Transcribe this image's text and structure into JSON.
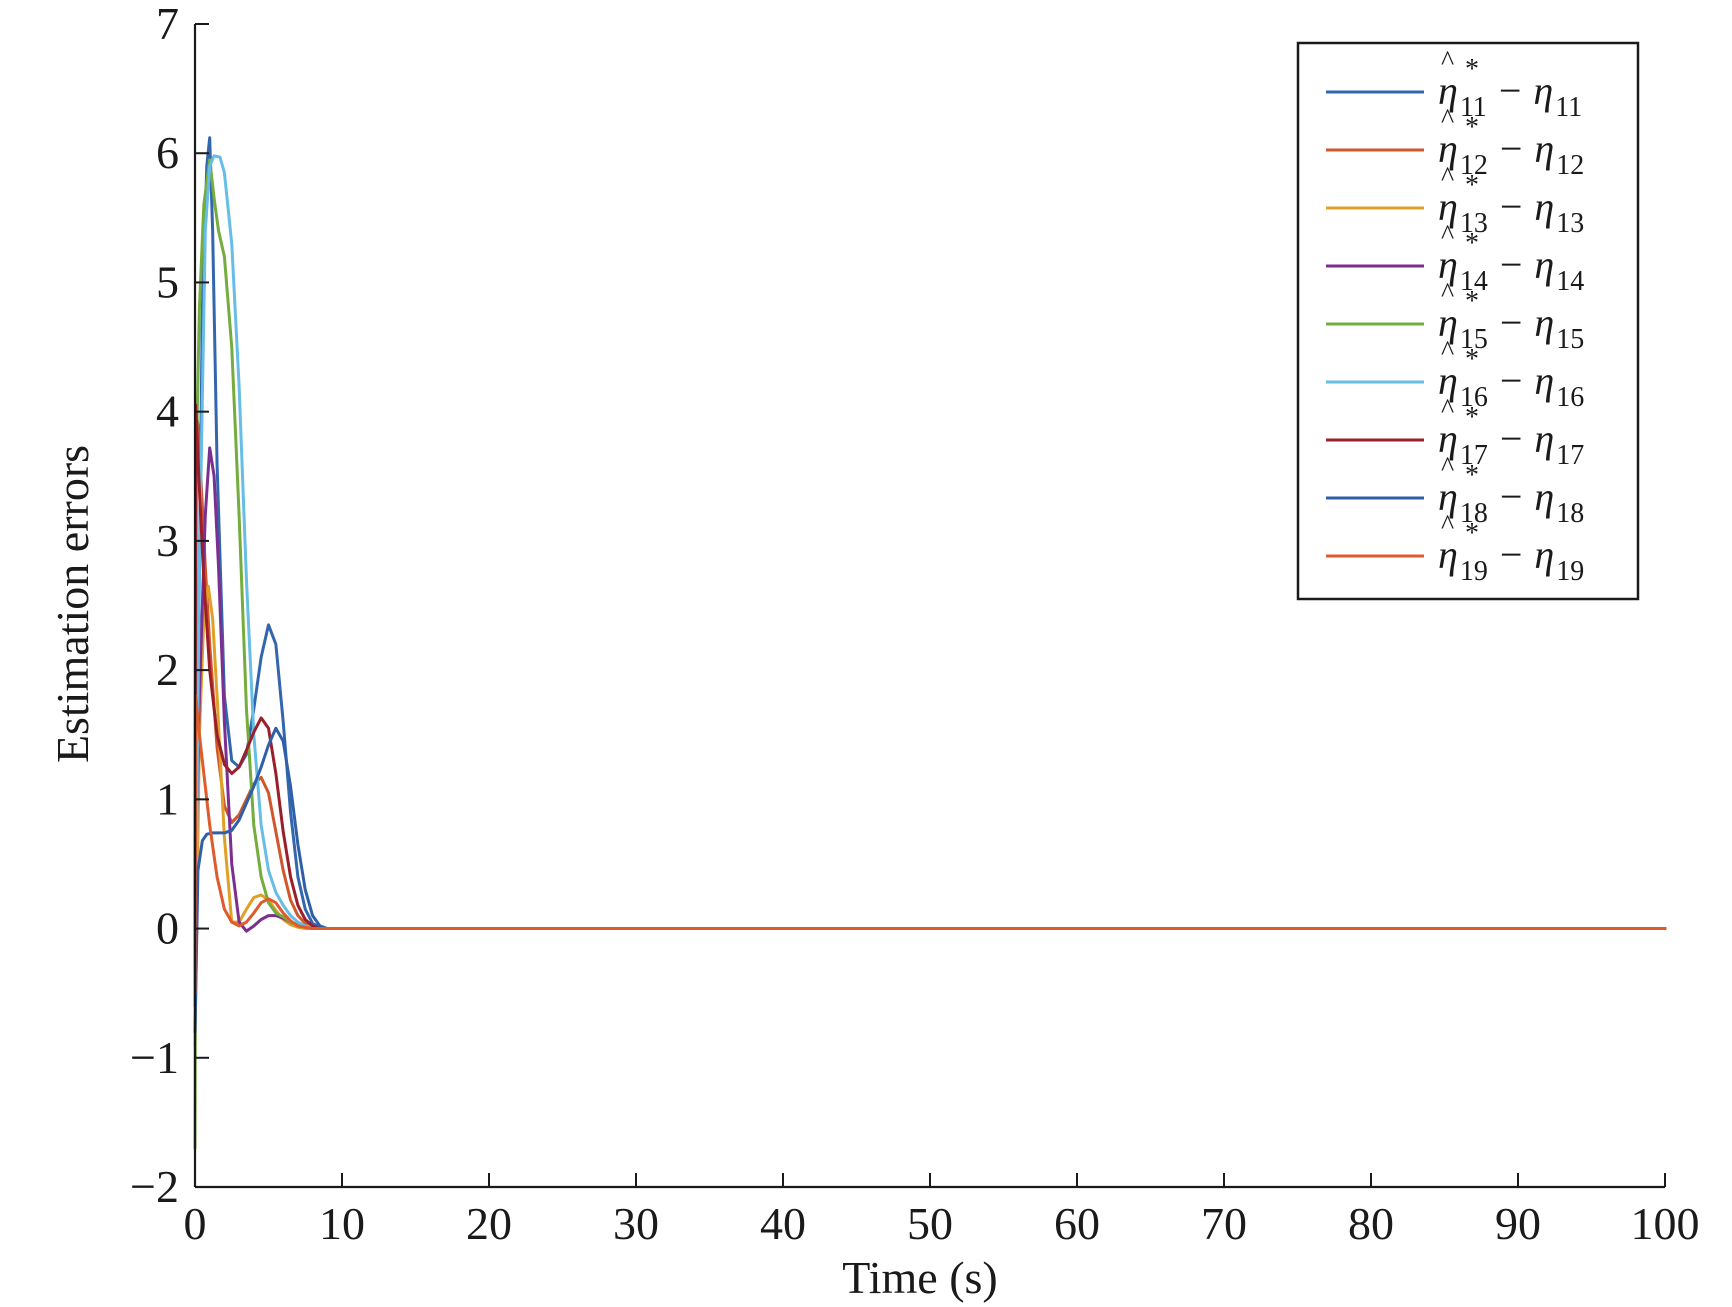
{
  "chart_data": {
    "type": "line",
    "xlabel": "Time (s)",
    "ylabel": "Estimation errors",
    "xlim": [
      0,
      100
    ],
    "ylim": [
      -2,
      7
    ],
    "xticks": [
      0,
      10,
      20,
      30,
      40,
      50,
      60,
      70,
      80,
      90,
      100
    ],
    "yticks": [
      -2,
      -1,
      0,
      1,
      2,
      3,
      4,
      5,
      6,
      7
    ],
    "xtick_labels": [
      "0",
      "10",
      "20",
      "30",
      "40",
      "50",
      "60",
      "70",
      "80",
      "90",
      "100"
    ],
    "ytick_labels": [
      "−2",
      "−1",
      "0",
      "1",
      "2",
      "3",
      "4",
      "5",
      "6",
      "7"
    ],
    "grid": false,
    "legend_position": "top-right",
    "series": [
      {
        "name": "η̂*11 − η11",
        "sub": "11",
        "color": "#3466ae",
        "x": [
          0,
          0.1,
          0.3,
          0.5,
          0.8,
          1.0,
          1.2,
          1.5,
          2.0,
          2.5,
          3.0,
          3.5,
          4.0,
          4.5,
          5.0,
          5.5,
          6.0,
          6.5,
          7.0,
          7.5,
          8.0,
          8.5,
          9.0,
          100
        ],
        "y": [
          -0.6,
          0.5,
          2.8,
          4.8,
          5.9,
          6.12,
          5.4,
          3.6,
          1.8,
          1.3,
          1.25,
          1.35,
          1.7,
          2.1,
          2.35,
          2.2,
          1.6,
          0.9,
          0.4,
          0.15,
          0.04,
          0.01,
          0,
          0
        ]
      },
      {
        "name": "η̂*12 − η12",
        "sub": "12",
        "color": "#d0572b",
        "x": [
          0,
          0.05,
          0.2,
          0.4,
          0.7,
          1.0,
          1.5,
          2.0,
          2.5,
          3.0,
          3.5,
          4.0,
          4.5,
          5.0,
          5.5,
          6.0,
          6.5,
          7.0,
          7.5,
          8.0,
          8.5,
          100
        ],
        "y": [
          -0.3,
          4.0,
          3.9,
          3.5,
          2.8,
          2.2,
          1.4,
          0.95,
          0.82,
          0.88,
          1.0,
          1.12,
          1.17,
          1.05,
          0.75,
          0.45,
          0.22,
          0.1,
          0.04,
          0.01,
          0,
          0
        ]
      },
      {
        "name": "η̂*13 − η13",
        "sub": "13",
        "color": "#e0a028",
        "x": [
          0,
          0.3,
          0.6,
          0.9,
          1.2,
          1.5,
          2.0,
          2.5,
          3.0,
          3.5,
          4.0,
          4.5,
          5.0,
          5.5,
          6.0,
          6.5,
          7.0,
          7.5,
          8.0,
          100
        ],
        "y": [
          -0.9,
          1.5,
          2.4,
          2.65,
          2.4,
          1.8,
          0.7,
          0.05,
          0.05,
          0.15,
          0.24,
          0.26,
          0.22,
          0.14,
          0.07,
          0.03,
          0.01,
          0,
          0,
          0
        ]
      },
      {
        "name": "η̂*14 − η14",
        "sub": "14",
        "color": "#7b2f8e",
        "x": [
          0,
          0.3,
          0.7,
          1.0,
          1.3,
          1.6,
          2.0,
          2.5,
          3.0,
          3.5,
          4.0,
          4.5,
          5.0,
          5.5,
          6.0,
          6.5,
          7.0,
          7.5,
          8.0,
          8.5,
          100
        ],
        "y": [
          0.2,
          1.8,
          3.2,
          3.72,
          3.5,
          2.8,
          1.6,
          0.5,
          0.05,
          -0.02,
          0.02,
          0.07,
          0.1,
          0.1,
          0.08,
          0.05,
          0.03,
          0.01,
          0,
          0,
          0
        ]
      },
      {
        "name": "η̂*15 − η15",
        "sub": "15",
        "color": "#74ac3e",
        "x": [
          0,
          0.1,
          0.3,
          0.6,
          1.0,
          1.3,
          1.6,
          2.0,
          2.5,
          3.0,
          3.5,
          4.0,
          4.5,
          5.0,
          5.5,
          6.0,
          6.5,
          7.0,
          7.5,
          8.0,
          8.5,
          100
        ],
        "y": [
          -1.7,
          3.7,
          4.8,
          5.6,
          5.95,
          5.65,
          5.4,
          5.2,
          4.5,
          3.2,
          1.7,
          0.8,
          0.4,
          0.2,
          0.12,
          0.09,
          0.05,
          0.03,
          0.01,
          0,
          0,
          0
        ]
      },
      {
        "name": "η̂*16 − η16",
        "sub": "16",
        "color": "#66bde6",
        "x": [
          0,
          0.3,
          0.7,
          1.0,
          1.3,
          1.7,
          2.0,
          2.5,
          3.0,
          3.5,
          4.0,
          4.5,
          5.0,
          5.5,
          6.0,
          6.5,
          7.0,
          7.5,
          8.0,
          8.5,
          100
        ],
        "y": [
          -0.5,
          2.8,
          5.4,
          5.9,
          5.98,
          5.97,
          5.85,
          5.3,
          4.2,
          2.7,
          1.5,
          0.8,
          0.45,
          0.28,
          0.18,
          0.1,
          0.05,
          0.02,
          0.01,
          0,
          0
        ]
      },
      {
        "name": "η̂*17 − η17",
        "sub": "17",
        "color": "#9b1f2a",
        "x": [
          0,
          0.05,
          0.3,
          0.6,
          1.0,
          1.5,
          2.0,
          2.5,
          3.0,
          3.5,
          4.0,
          4.5,
          5.0,
          5.5,
          6.0,
          6.5,
          7.0,
          7.5,
          8.0,
          8.5,
          100
        ],
        "y": [
          -0.3,
          4.05,
          3.4,
          2.7,
          2.0,
          1.5,
          1.27,
          1.2,
          1.25,
          1.38,
          1.52,
          1.63,
          1.55,
          1.2,
          0.75,
          0.4,
          0.18,
          0.07,
          0.02,
          0,
          0
        ]
      },
      {
        "name": "η̂*18 − η18",
        "sub": "18",
        "color": "#2f5fa8",
        "x": [
          0,
          0.2,
          0.5,
          0.8,
          1.2,
          1.6,
          2.0,
          2.5,
          3.0,
          3.5,
          4.0,
          4.5,
          5.0,
          5.5,
          6.0,
          6.5,
          7.0,
          7.5,
          8.0,
          8.5,
          9.0,
          100
        ],
        "y": [
          -0.8,
          0.45,
          0.68,
          0.73,
          0.74,
          0.74,
          0.74,
          0.76,
          0.84,
          0.97,
          1.1,
          1.25,
          1.42,
          1.55,
          1.45,
          1.1,
          0.65,
          0.3,
          0.1,
          0.02,
          0,
          0
        ]
      },
      {
        "name": "η̂*19 − η19",
        "sub": "19",
        "color": "#e05a2c",
        "x": [
          0,
          0.05,
          0.3,
          0.6,
          1.0,
          1.5,
          2.0,
          2.5,
          3.0,
          3.5,
          4.0,
          4.5,
          5.0,
          5.5,
          6.0,
          6.5,
          7.0,
          7.5,
          8.0,
          100
        ],
        "y": [
          -0.5,
          1.8,
          1.5,
          1.2,
          0.8,
          0.4,
          0.15,
          0.05,
          0.02,
          0.05,
          0.12,
          0.2,
          0.23,
          0.2,
          0.12,
          0.06,
          0.02,
          0.01,
          0,
          0
        ]
      }
    ]
  }
}
